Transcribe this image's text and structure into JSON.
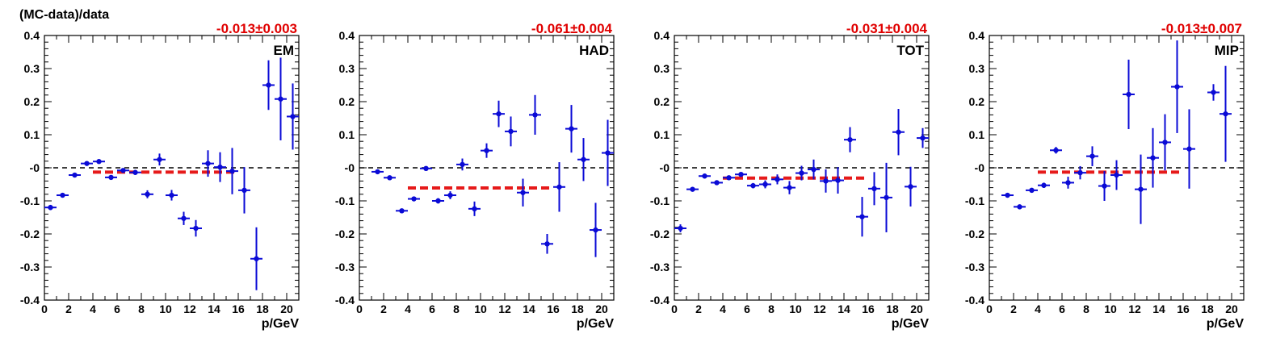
{
  "figure": {
    "ylabel": "(MC-data)/data"
  },
  "colors": {
    "points": "#0a0ad6",
    "fit": "#e61a1a",
    "zero_line": "#000000",
    "fit_text": "#e00000"
  },
  "chart_data": [
    {
      "type": "scatter",
      "label": "EM",
      "fit_text": "-0.013±0.003",
      "fit": {
        "value": -0.013,
        "x_range": [
          4,
          16
        ]
      },
      "xlabel": "p/GeV",
      "xlim": [
        0,
        21
      ],
      "ylim": [
        -0.4,
        0.4
      ],
      "x_ticks": [
        0,
        2,
        4,
        6,
        8,
        10,
        12,
        14,
        16,
        18,
        20
      ],
      "y_ticks": [
        "-0.4",
        "-0.3",
        "-0.2",
        "-0.1",
        "-0",
        "0.1",
        "0.2",
        "0.3",
        "0.4"
      ],
      "points": [
        {
          "x": 0.5,
          "y": -0.12,
          "err": 0.008
        },
        {
          "x": 1.5,
          "y": -0.083,
          "err": 0.006
        },
        {
          "x": 2.5,
          "y": -0.022,
          "err": 0.005
        },
        {
          "x": 3.5,
          "y": 0.013,
          "err": 0.005
        },
        {
          "x": 4.5,
          "y": 0.019,
          "err": 0.005
        },
        {
          "x": 5.5,
          "y": -0.029,
          "err": 0.007
        },
        {
          "x": 6.5,
          "y": -0.008,
          "err": 0.006
        },
        {
          "x": 7.5,
          "y": -0.014,
          "err": 0.007
        },
        {
          "x": 8.5,
          "y": -0.08,
          "err": 0.012
        },
        {
          "x": 9.5,
          "y": 0.025,
          "err": 0.018
        },
        {
          "x": 10.5,
          "y": -0.083,
          "err": 0.016
        },
        {
          "x": 11.5,
          "y": -0.153,
          "err": 0.02
        },
        {
          "x": 12.5,
          "y": -0.183,
          "err": 0.025
        },
        {
          "x": 13.5,
          "y": 0.013,
          "err": 0.04
        },
        {
          "x": 14.5,
          "y": 0.002,
          "err": 0.045
        },
        {
          "x": 15.5,
          "y": -0.01,
          "err": 0.07
        },
        {
          "x": 16.5,
          "y": -0.068,
          "err": 0.07
        },
        {
          "x": 17.5,
          "y": -0.275,
          "err": 0.095
        },
        {
          "x": 18.5,
          "y": 0.25,
          "err": 0.075
        },
        {
          "x": 19.5,
          "y": 0.208,
          "err": 0.125
        },
        {
          "x": 20.5,
          "y": 0.155,
          "err": 0.1
        }
      ]
    },
    {
      "type": "scatter",
      "label": "HAD",
      "fit_text": "-0.061±0.004",
      "fit": {
        "value": -0.061,
        "x_range": [
          4,
          16
        ]
      },
      "xlabel": "p/GeV",
      "xlim": [
        0,
        21
      ],
      "ylim": [
        -0.4,
        0.4
      ],
      "x_ticks": [
        0,
        2,
        4,
        6,
        8,
        10,
        12,
        14,
        16,
        18,
        20
      ],
      "y_ticks": [
        "-0.4",
        "-0.3",
        "-0.2",
        "-0.1",
        "-0",
        "0.1",
        "0.2",
        "0.3",
        "0.4"
      ],
      "points": [
        {
          "x": 1.5,
          "y": -0.012,
          "err": 0.006
        },
        {
          "x": 2.5,
          "y": -0.03,
          "err": 0.005
        },
        {
          "x": 3.5,
          "y": -0.13,
          "err": 0.005
        },
        {
          "x": 4.5,
          "y": -0.094,
          "err": 0.006
        },
        {
          "x": 5.5,
          "y": -0.002,
          "err": 0.005
        },
        {
          "x": 6.5,
          "y": -0.1,
          "err": 0.008
        },
        {
          "x": 7.5,
          "y": -0.083,
          "err": 0.012
        },
        {
          "x": 8.5,
          "y": 0.01,
          "err": 0.018
        },
        {
          "x": 9.5,
          "y": -0.124,
          "err": 0.022
        },
        {
          "x": 10.5,
          "y": 0.052,
          "err": 0.022
        },
        {
          "x": 11.5,
          "y": 0.163,
          "err": 0.04
        },
        {
          "x": 12.5,
          "y": 0.11,
          "err": 0.045
        },
        {
          "x": 13.5,
          "y": -0.075,
          "err": 0.042
        },
        {
          "x": 14.5,
          "y": 0.16,
          "err": 0.06
        },
        {
          "x": 15.5,
          "y": -0.23,
          "err": 0.03
        },
        {
          "x": 16.5,
          "y": -0.058,
          "err": 0.075
        },
        {
          "x": 17.5,
          "y": 0.118,
          "err": 0.072
        },
        {
          "x": 18.5,
          "y": 0.025,
          "err": 0.065
        },
        {
          "x": 19.5,
          "y": -0.188,
          "err": 0.082
        },
        {
          "x": 20.5,
          "y": 0.045,
          "err": 0.1
        }
      ]
    },
    {
      "type": "scatter",
      "label": "TOT",
      "fit_text": "-0.031±0.004",
      "fit": {
        "value": -0.031,
        "x_range": [
          4,
          16
        ]
      },
      "xlabel": "p/GeV",
      "xlim": [
        0,
        21
      ],
      "ylim": [
        -0.4,
        0.4
      ],
      "x_ticks": [
        0,
        2,
        4,
        6,
        8,
        10,
        12,
        14,
        16,
        18,
        20
      ],
      "y_ticks": [
        "-0.4",
        "-0.3",
        "-0.2",
        "-0.1",
        "-0",
        "0.1",
        "0.2",
        "0.3",
        "0.4"
      ],
      "points": [
        {
          "x": 0.5,
          "y": -0.183,
          "err": 0.012
        },
        {
          "x": 1.5,
          "y": -0.065,
          "err": 0.005
        },
        {
          "x": 2.5,
          "y": -0.025,
          "err": 0.005
        },
        {
          "x": 3.5,
          "y": -0.045,
          "err": 0.005
        },
        {
          "x": 4.5,
          "y": -0.03,
          "err": 0.005
        },
        {
          "x": 5.5,
          "y": -0.02,
          "err": 0.005
        },
        {
          "x": 6.5,
          "y": -0.054,
          "err": 0.008
        },
        {
          "x": 7.5,
          "y": -0.05,
          "err": 0.012
        },
        {
          "x": 8.5,
          "y": -0.035,
          "err": 0.015
        },
        {
          "x": 9.5,
          "y": -0.06,
          "err": 0.02
        },
        {
          "x": 10.5,
          "y": -0.016,
          "err": 0.022
        },
        {
          "x": 11.5,
          "y": -0.005,
          "err": 0.03
        },
        {
          "x": 12.5,
          "y": -0.04,
          "err": 0.035
        },
        {
          "x": 13.5,
          "y": -0.038,
          "err": 0.04
        },
        {
          "x": 14.5,
          "y": 0.085,
          "err": 0.038
        },
        {
          "x": 15.5,
          "y": -0.148,
          "err": 0.06
        },
        {
          "x": 16.5,
          "y": -0.063,
          "err": 0.05
        },
        {
          "x": 17.5,
          "y": -0.09,
          "err": 0.105
        },
        {
          "x": 18.5,
          "y": 0.108,
          "err": 0.07
        },
        {
          "x": 19.5,
          "y": -0.057,
          "err": 0.06
        },
        {
          "x": 20.5,
          "y": 0.09,
          "err": 0.03
        }
      ]
    },
    {
      "type": "scatter",
      "label": "MIP",
      "fit_text": "-0.013±0.007",
      "fit": {
        "value": -0.013,
        "x_range": [
          4,
          16
        ]
      },
      "xlabel": "p/GeV",
      "xlim": [
        0,
        21
      ],
      "ylim": [
        -0.4,
        0.4
      ],
      "x_ticks": [
        0,
        2,
        4,
        6,
        8,
        10,
        12,
        14,
        16,
        18,
        20
      ],
      "y_ticks": [
        "-0.4",
        "-0.3",
        "-0.2",
        "-0.1",
        "-0",
        "0.1",
        "0.2",
        "0.3",
        "0.4"
      ],
      "points": [
        {
          "x": 1.5,
          "y": -0.083,
          "err": 0.006
        },
        {
          "x": 2.5,
          "y": -0.118,
          "err": 0.006
        },
        {
          "x": 3.5,
          "y": -0.068,
          "err": 0.007
        },
        {
          "x": 4.5,
          "y": -0.053,
          "err": 0.008
        },
        {
          "x": 5.5,
          "y": 0.053,
          "err": 0.01
        },
        {
          "x": 6.5,
          "y": -0.045,
          "err": 0.018
        },
        {
          "x": 7.5,
          "y": -0.015,
          "err": 0.02
        },
        {
          "x": 8.5,
          "y": 0.035,
          "err": 0.03
        },
        {
          "x": 9.5,
          "y": -0.055,
          "err": 0.045
        },
        {
          "x": 10.5,
          "y": -0.022,
          "err": 0.045
        },
        {
          "x": 11.5,
          "y": 0.222,
          "err": 0.105
        },
        {
          "x": 12.5,
          "y": -0.065,
          "err": 0.105
        },
        {
          "x": 13.5,
          "y": 0.03,
          "err": 0.09
        },
        {
          "x": 14.5,
          "y": 0.077,
          "err": 0.085
        },
        {
          "x": 15.5,
          "y": 0.245,
          "err": 0.14
        },
        {
          "x": 16.5,
          "y": 0.057,
          "err": 0.12
        },
        {
          "x": 18.5,
          "y": 0.228,
          "err": 0.025
        },
        {
          "x": 19.5,
          "y": 0.163,
          "err": 0.145
        }
      ]
    }
  ]
}
